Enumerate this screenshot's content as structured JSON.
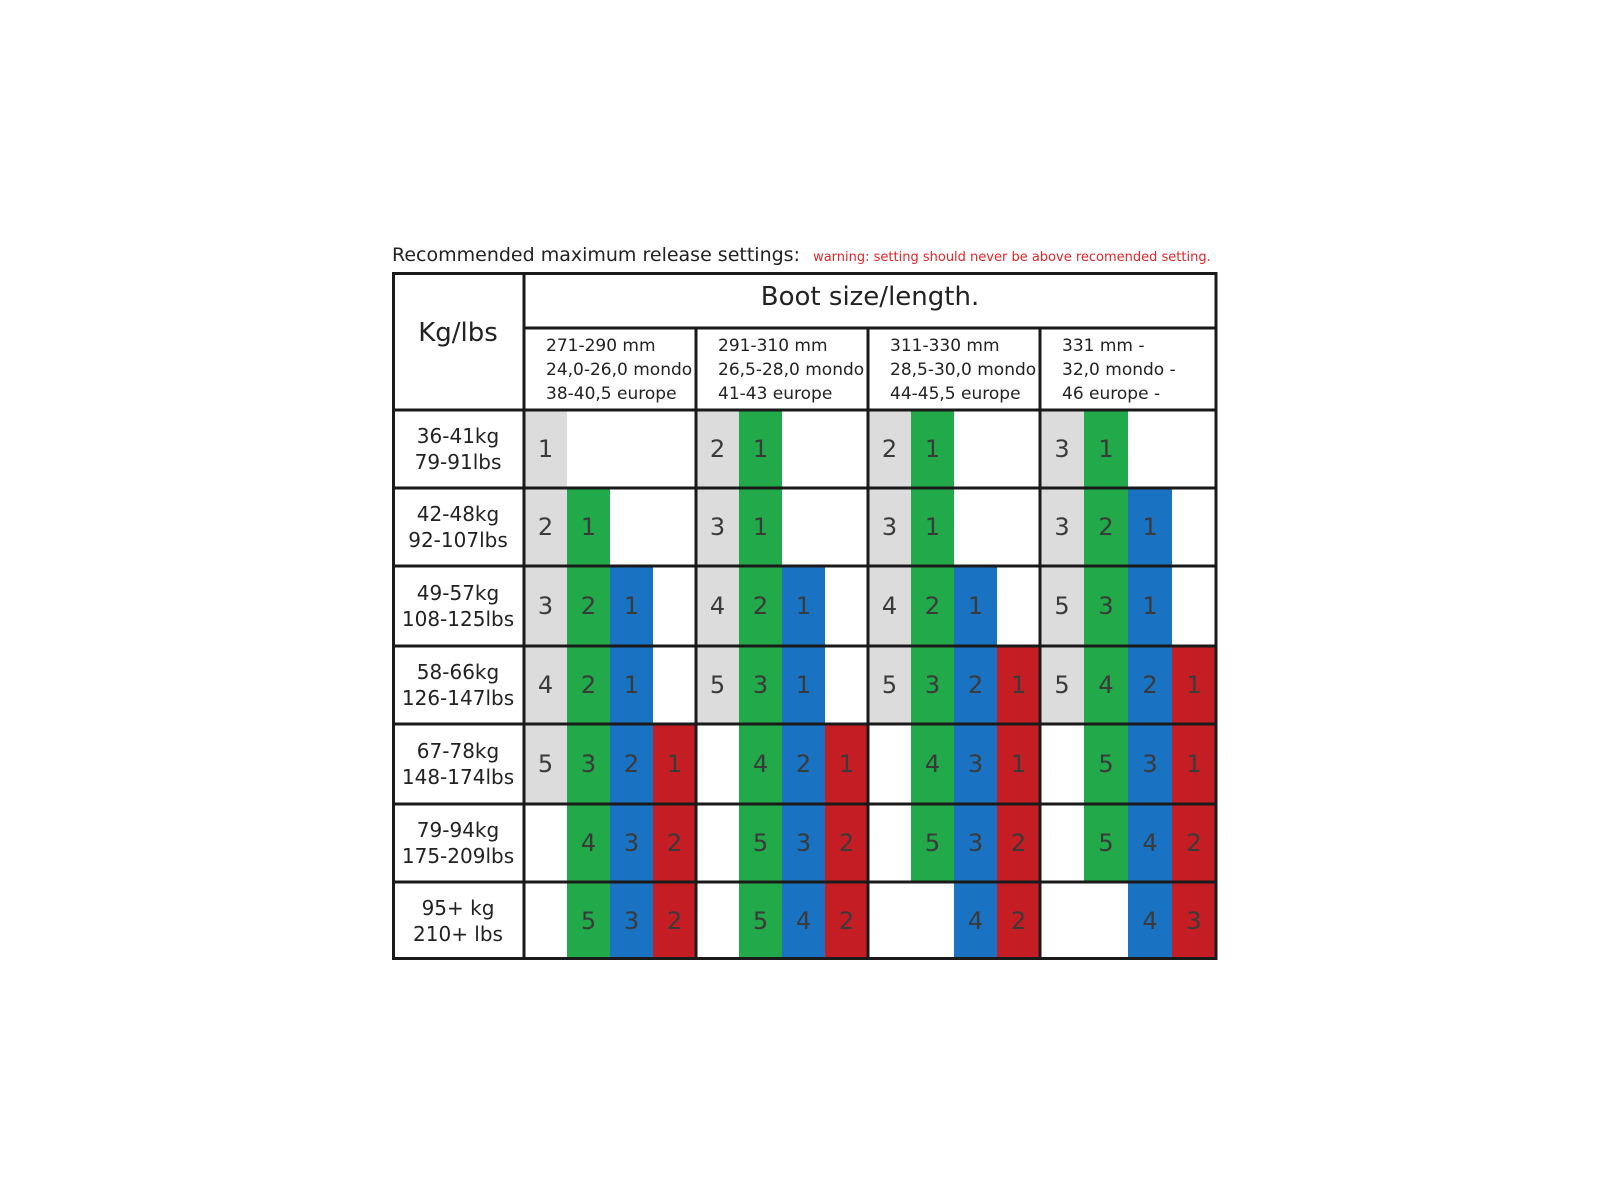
{
  "title": "Recommended maximum release settings:",
  "warning": "warning: setting should never be above recomended setting.",
  "corner_label": "Kg/lbs",
  "boot_header": "Boot size/length.",
  "boot_sizes": [
    {
      "lines": [
        "271-290 mm",
        "24,0-26,0 mondo",
        "38-40,5 europe"
      ]
    },
    {
      "lines": [
        "291-310 mm",
        "26,5-28,0 mondo",
        "41-43 europe"
      ]
    },
    {
      "lines": [
        "311-330 mm",
        "28,5-30,0 mondo",
        "44-45,5 europe"
      ]
    },
    {
      "lines": [
        "331 mm -",
        "32,0 mondo -",
        "46 europe -"
      ]
    }
  ],
  "colors": {
    "grey": "#dcdcdc",
    "green": "#21a94a",
    "blue": "#1a72c2",
    "red": "#c41e24",
    "warning": "#e0262a",
    "border": "#1a1a1a"
  },
  "rows": [
    {
      "weight": [
        "36-41kg",
        "79-91lbs"
      ],
      "groups": [
        [
          {
            "v": "1",
            "c": "grey"
          },
          {
            "v": "",
            "c": "none"
          },
          {
            "v": "",
            "c": "none"
          },
          {
            "v": "",
            "c": "none"
          }
        ],
        [
          {
            "v": "2",
            "c": "grey"
          },
          {
            "v": "1",
            "c": "green"
          },
          {
            "v": "",
            "c": "none"
          },
          {
            "v": "",
            "c": "none"
          }
        ],
        [
          {
            "v": "2",
            "c": "grey"
          },
          {
            "v": "1",
            "c": "green"
          },
          {
            "v": "",
            "c": "none"
          },
          {
            "v": "",
            "c": "none"
          }
        ],
        [
          {
            "v": "3",
            "c": "grey"
          },
          {
            "v": "1",
            "c": "green"
          },
          {
            "v": "",
            "c": "none"
          },
          {
            "v": "",
            "c": "none"
          }
        ]
      ]
    },
    {
      "weight": [
        "42-48kg",
        "92-107lbs"
      ],
      "groups": [
        [
          {
            "v": "2",
            "c": "grey"
          },
          {
            "v": "1",
            "c": "green"
          },
          {
            "v": "",
            "c": "none"
          },
          {
            "v": "",
            "c": "none"
          }
        ],
        [
          {
            "v": "3",
            "c": "grey"
          },
          {
            "v": "1",
            "c": "green"
          },
          {
            "v": "",
            "c": "none"
          },
          {
            "v": "",
            "c": "none"
          }
        ],
        [
          {
            "v": "3",
            "c": "grey"
          },
          {
            "v": "1",
            "c": "green"
          },
          {
            "v": "",
            "c": "none"
          },
          {
            "v": "",
            "c": "none"
          }
        ],
        [
          {
            "v": "3",
            "c": "grey"
          },
          {
            "v": "2",
            "c": "green"
          },
          {
            "v": "1",
            "c": "blue"
          },
          {
            "v": "",
            "c": "none"
          }
        ]
      ]
    },
    {
      "weight": [
        "49-57kg",
        "108-125lbs"
      ],
      "groups": [
        [
          {
            "v": "3",
            "c": "grey"
          },
          {
            "v": "2",
            "c": "green"
          },
          {
            "v": "1",
            "c": "blue"
          },
          {
            "v": "",
            "c": "none"
          }
        ],
        [
          {
            "v": "4",
            "c": "grey"
          },
          {
            "v": "2",
            "c": "green"
          },
          {
            "v": "1",
            "c": "blue"
          },
          {
            "v": "",
            "c": "none"
          }
        ],
        [
          {
            "v": "4",
            "c": "grey"
          },
          {
            "v": "2",
            "c": "green"
          },
          {
            "v": "1",
            "c": "blue"
          },
          {
            "v": "",
            "c": "none"
          }
        ],
        [
          {
            "v": "5",
            "c": "grey"
          },
          {
            "v": "3",
            "c": "green"
          },
          {
            "v": "1",
            "c": "blue"
          },
          {
            "v": "",
            "c": "none"
          }
        ]
      ]
    },
    {
      "weight": [
        "58-66kg",
        "126-147lbs"
      ],
      "groups": [
        [
          {
            "v": "4",
            "c": "grey"
          },
          {
            "v": "2",
            "c": "green"
          },
          {
            "v": "1",
            "c": "blue"
          },
          {
            "v": "",
            "c": "none"
          }
        ],
        [
          {
            "v": "5",
            "c": "grey"
          },
          {
            "v": "3",
            "c": "green"
          },
          {
            "v": "1",
            "c": "blue"
          },
          {
            "v": "",
            "c": "none"
          }
        ],
        [
          {
            "v": "5",
            "c": "grey"
          },
          {
            "v": "3",
            "c": "green"
          },
          {
            "v": "2",
            "c": "blue"
          },
          {
            "v": "1",
            "c": "red"
          }
        ],
        [
          {
            "v": "5",
            "c": "grey"
          },
          {
            "v": "4",
            "c": "green"
          },
          {
            "v": "2",
            "c": "blue"
          },
          {
            "v": "1",
            "c": "red"
          }
        ]
      ]
    },
    {
      "weight": [
        "67-78kg",
        "148-174lbs"
      ],
      "groups": [
        [
          {
            "v": "5",
            "c": "grey"
          },
          {
            "v": "3",
            "c": "green"
          },
          {
            "v": "2",
            "c": "blue"
          },
          {
            "v": "1",
            "c": "red"
          }
        ],
        [
          {
            "v": "",
            "c": "none"
          },
          {
            "v": "4",
            "c": "green"
          },
          {
            "v": "2",
            "c": "blue"
          },
          {
            "v": "1",
            "c": "red"
          }
        ],
        [
          {
            "v": "",
            "c": "none"
          },
          {
            "v": "4",
            "c": "green"
          },
          {
            "v": "3",
            "c": "blue"
          },
          {
            "v": "1",
            "c": "red"
          }
        ],
        [
          {
            "v": "",
            "c": "none"
          },
          {
            "v": "5",
            "c": "green"
          },
          {
            "v": "3",
            "c": "blue"
          },
          {
            "v": "1",
            "c": "red"
          }
        ]
      ]
    },
    {
      "weight": [
        "79-94kg",
        "175-209lbs"
      ],
      "groups": [
        [
          {
            "v": "",
            "c": "none"
          },
          {
            "v": "4",
            "c": "green"
          },
          {
            "v": "3",
            "c": "blue"
          },
          {
            "v": "2",
            "c": "red"
          }
        ],
        [
          {
            "v": "",
            "c": "none"
          },
          {
            "v": "5",
            "c": "green"
          },
          {
            "v": "3",
            "c": "blue"
          },
          {
            "v": "2",
            "c": "red"
          }
        ],
        [
          {
            "v": "",
            "c": "none"
          },
          {
            "v": "5",
            "c": "green"
          },
          {
            "v": "3",
            "c": "blue"
          },
          {
            "v": "2",
            "c": "red"
          }
        ],
        [
          {
            "v": "",
            "c": "none"
          },
          {
            "v": "5",
            "c": "green"
          },
          {
            "v": "4",
            "c": "blue"
          },
          {
            "v": "2",
            "c": "red"
          }
        ]
      ]
    },
    {
      "weight": [
        "95+ kg",
        "210+ lbs"
      ],
      "groups": [
        [
          {
            "v": "",
            "c": "none"
          },
          {
            "v": "5",
            "c": "green"
          },
          {
            "v": "3",
            "c": "blue"
          },
          {
            "v": "2",
            "c": "red"
          }
        ],
        [
          {
            "v": "",
            "c": "none"
          },
          {
            "v": "5",
            "c": "green"
          },
          {
            "v": "4",
            "c": "blue"
          },
          {
            "v": "2",
            "c": "red"
          }
        ],
        [
          {
            "v": "",
            "c": "none"
          },
          {
            "v": "",
            "c": "none"
          },
          {
            "v": "4",
            "c": "blue"
          },
          {
            "v": "2",
            "c": "red"
          }
        ],
        [
          {
            "v": "",
            "c": "none"
          },
          {
            "v": "",
            "c": "none"
          },
          {
            "v": "4",
            "c": "blue"
          },
          {
            "v": "3",
            "c": "red"
          }
        ]
      ]
    }
  ]
}
